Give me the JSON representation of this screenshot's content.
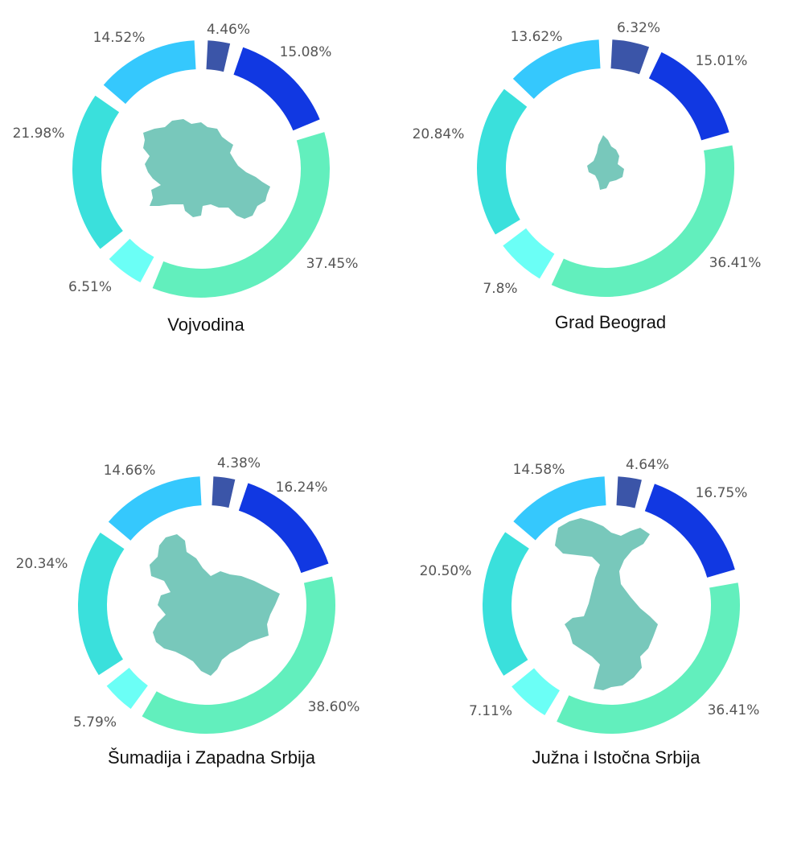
{
  "colors": {
    "segment_palette": [
      "#3b55a8",
      "#1138e2",
      "#62efbd",
      "#6bfff6",
      "#3ae0dc",
      "#35c8fd"
    ],
    "map_fill": "#78c8bb",
    "label_text": "#555555",
    "title_text": "#111111"
  },
  "chart_data": [
    {
      "type": "pie",
      "title": "Vojvodina",
      "values": [
        4.46,
        15.08,
        37.45,
        6.51,
        21.98,
        14.52
      ],
      "labels": [
        "4.46%",
        "15.08%",
        "37.45%",
        "6.51%",
        "21.98%",
        "14.52%"
      ],
      "center_icon": "vojvodina-map-icon"
    },
    {
      "type": "pie",
      "title": "Grad Beograd",
      "values": [
        6.32,
        15.01,
        36.41,
        7.8,
        20.84,
        13.62
      ],
      "labels": [
        "6.32%",
        "15.01%",
        "36.41%",
        "7.8%",
        "20.84%",
        "13.62%"
      ],
      "center_icon": "beograd-map-icon"
    },
    {
      "type": "pie",
      "title": "Šumadija i Zapadna Srbija",
      "values": [
        4.38,
        16.24,
        38.6,
        5.79,
        20.34,
        14.66
      ],
      "labels": [
        "4.38%",
        "16.24%",
        "38.60%",
        "5.79%",
        "20.34%",
        "14.66%"
      ],
      "center_icon": "sumadija-map-icon"
    },
    {
      "type": "pie",
      "title": "Južna i Istočna Srbija",
      "values": [
        4.64,
        16.75,
        36.41,
        7.11,
        20.5,
        14.58
      ],
      "labels": [
        "4.64%",
        "16.75%",
        "36.41%",
        "7.11%",
        "20.50%",
        "14.58%"
      ],
      "center_icon": "juzna-srbija-map-icon"
    }
  ]
}
